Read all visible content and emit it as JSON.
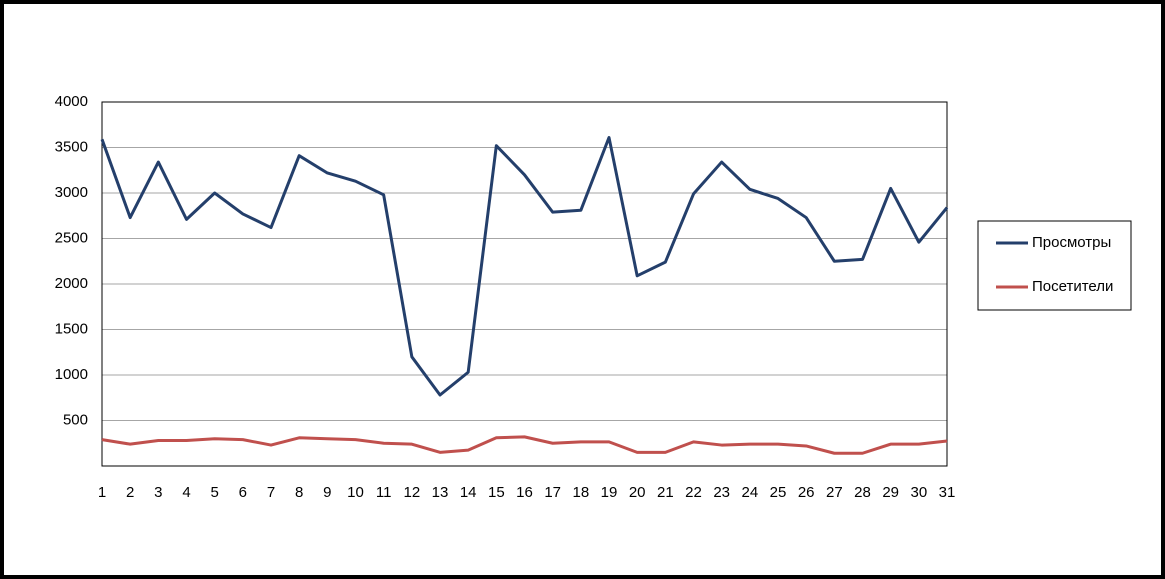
{
  "chart_data": {
    "type": "line",
    "x": [
      1,
      2,
      3,
      4,
      5,
      6,
      7,
      8,
      9,
      10,
      11,
      12,
      13,
      14,
      15,
      16,
      17,
      18,
      19,
      20,
      21,
      22,
      23,
      24,
      25,
      26,
      27,
      28,
      29,
      30,
      31
    ],
    "series": [
      {
        "name": "Просмотры",
        "color": "#243f6b",
        "values": [
          3590,
          2730,
          3340,
          2710,
          3000,
          2770,
          2620,
          3410,
          3220,
          3130,
          2980,
          1200,
          780,
          1030,
          3520,
          3200,
          2790,
          2810,
          3610,
          2090,
          2240,
          2990,
          3340,
          3040,
          2940,
          2730,
          2250,
          2270,
          3050,
          2460,
          2840
        ]
      },
      {
        "name": "Посетители",
        "color": "#c0504d",
        "values": [
          290,
          240,
          280,
          280,
          300,
          290,
          230,
          310,
          300,
          290,
          250,
          240,
          150,
          175,
          310,
          320,
          250,
          265,
          265,
          150,
          150,
          265,
          230,
          240,
          240,
          220,
          140,
          140,
          240,
          240,
          275
        ]
      }
    ],
    "xlim": [
      1,
      31
    ],
    "xticks": [
      1,
      2,
      3,
      4,
      5,
      6,
      7,
      8,
      9,
      10,
      11,
      12,
      13,
      14,
      15,
      16,
      17,
      18,
      19,
      20,
      21,
      22,
      23,
      24,
      25,
      26,
      27,
      28,
      29,
      30,
      31
    ],
    "ylim": [
      0,
      4000
    ],
    "yticks": [
      500,
      1000,
      1500,
      2000,
      2500,
      3000,
      3500,
      4000
    ],
    "grid": true,
    "legend": "right"
  }
}
